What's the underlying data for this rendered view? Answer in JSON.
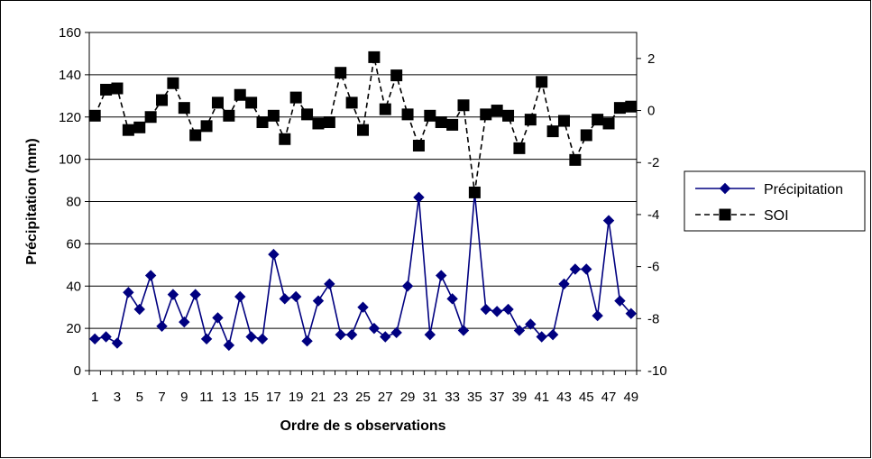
{
  "chart_data": {
    "type": "line",
    "xlabel": "Ordre de s observations",
    "ylabel": "Précipitation (mm)",
    "x": [
      1,
      2,
      3,
      4,
      5,
      6,
      7,
      8,
      9,
      10,
      11,
      12,
      13,
      14,
      15,
      16,
      17,
      18,
      19,
      20,
      21,
      22,
      23,
      24,
      25,
      26,
      27,
      28,
      29,
      30,
      31,
      32,
      33,
      34,
      35,
      36,
      37,
      38,
      39,
      40,
      41,
      42,
      43,
      44,
      45,
      46,
      47,
      48,
      49
    ],
    "x_tick_labels": [
      "1",
      "3",
      "5",
      "7",
      "9",
      "11",
      "13",
      "15",
      "17",
      "19",
      "21",
      "23",
      "25",
      "27",
      "29",
      "31",
      "33",
      "35",
      "37",
      "39",
      "41",
      "43",
      "45",
      "47",
      "49"
    ],
    "ylim": [
      0,
      160
    ],
    "y_ticks": [
      0,
      20,
      40,
      60,
      80,
      100,
      120,
      140,
      160
    ],
    "y2lim": [
      -10,
      3
    ],
    "y2_ticks": [
      -10,
      -8,
      -6,
      -4,
      -2,
      0,
      2
    ],
    "grid": true,
    "legend_position": "right",
    "series": [
      {
        "name": "Précipitation",
        "axis": "left",
        "color": "#000080",
        "marker": "diamond",
        "line_style": "solid",
        "values": [
          15,
          16,
          13,
          37,
          29,
          45,
          21,
          36,
          23,
          36,
          15,
          25,
          12,
          35,
          16,
          15,
          55,
          34,
          35,
          14,
          33,
          41,
          17,
          17,
          30,
          20,
          16,
          18,
          40,
          82,
          17,
          45,
          34,
          19,
          84,
          29,
          28,
          29,
          19,
          22,
          16,
          17,
          41,
          48,
          48,
          26,
          71,
          33,
          27
        ]
      },
      {
        "name": "SOI",
        "axis": "right",
        "color": "#000000",
        "marker": "square",
        "line_style": "dashed",
        "values": [
          -0.2,
          0.8,
          0.85,
          -0.75,
          -0.65,
          -0.25,
          0.4,
          1.05,
          0.1,
          -0.95,
          -0.6,
          0.3,
          -0.2,
          0.6,
          0.3,
          -0.45,
          -0.2,
          -1.1,
          0.5,
          -0.15,
          -0.5,
          -0.45,
          1.45,
          0.3,
          -0.75,
          2.05,
          0.05,
          1.35,
          -0.15,
          -1.35,
          -0.2,
          -0.45,
          -0.55,
          0.2,
          -3.15,
          -0.15,
          0.0,
          -0.2,
          -1.45,
          -0.35,
          1.1,
          -0.8,
          -0.4,
          -1.9,
          -0.95,
          -0.35,
          -0.5,
          0.1,
          0.15
        ]
      }
    ]
  }
}
